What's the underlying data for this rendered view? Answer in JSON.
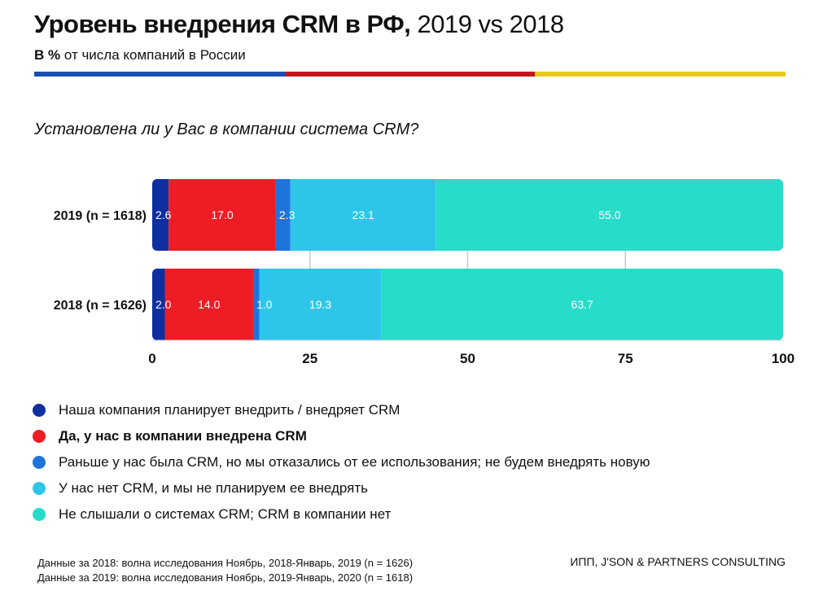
{
  "header": {
    "title_bold": "Уровень внедрения CRM в РФ,",
    "title_rest": "2019 vs 2018",
    "subtitle_bold": "В %",
    "subtitle_rest": "от числа компаний в России",
    "stripe_colors": [
      "#1a4fb4",
      "#c4141c",
      "#e8c81e"
    ]
  },
  "question": "Установлена ли у Вас в компании система CRM?",
  "chart_data": {
    "type": "bar",
    "orientation": "horizontal",
    "stacked": true,
    "categories": [
      "2019 (n = 1618)",
      "2018 (n = 1626)"
    ],
    "series": [
      {
        "name": "Наша компания планирует внедрить / внедряет CRM",
        "color": "#0d2fa0",
        "values": [
          2.6,
          2.0
        ]
      },
      {
        "name": "Да, у нас в компании внедрена CRM",
        "color": "#ee1c24",
        "values": [
          17.0,
          14.0
        ]
      },
      {
        "name": "Раньше у нас была CRM, но мы отказались от ее использования; не будем внедрять новую",
        "color": "#1f74dc",
        "values": [
          2.3,
          1.0
        ]
      },
      {
        "name": "У нас нет CRM, и мы не планируем ее внедрять",
        "color": "#2ec6e8",
        "values": [
          23.1,
          19.3
        ]
      },
      {
        "name": "Не слышали о системах CRM; CRM в компании нет",
        "color": "#28dccb",
        "values": [
          55.0,
          63.7
        ]
      }
    ],
    "value_labels": [
      [
        "2.6",
        "17.0",
        "2.3",
        "23.1",
        "55.0"
      ],
      [
        "2.0",
        "14.0",
        "1.0",
        "19.3",
        "63.7"
      ]
    ],
    "xlim": [
      0,
      100
    ],
    "xticks": [
      "0",
      "25",
      "50",
      "75",
      "100"
    ],
    "grid": true,
    "legend_position": "bottom"
  },
  "legend": {
    "bold_index": 1
  },
  "footer": {
    "note_2018": "Данные за 2018: волна исследования Ноябрь, 2018-Январь, 2019 (n = 1626)",
    "note_2019": "Данные за 2019: волна исследования Ноябрь, 2019-Январь, 2020 (n = 1618)",
    "credit": "ИПП, J'SON & PARTNERS CONSULTING"
  }
}
